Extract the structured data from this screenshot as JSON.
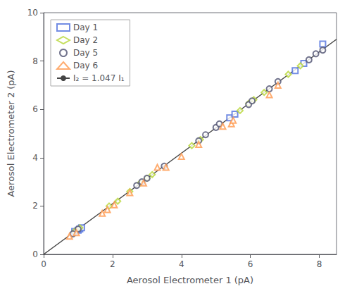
{
  "chart_data": {
    "type": "scatter",
    "xlabel": "Aerosol Electrometer 1 (pA)",
    "ylabel": "Aerosol Electrometer 2 (pA)",
    "series": [
      {
        "name": "Day 1",
        "marker": "square",
        "x": [
          0.9,
          1.0,
          1.05,
          1.1,
          5.4,
          5.55,
          7.3,
          7.55,
          8.1
        ],
        "values": [
          0.95,
          1.0,
          1.05,
          1.1,
          5.65,
          5.8,
          7.6,
          7.9,
          8.7
        ]
      },
      {
        "name": "Day 2",
        "marker": "diamond",
        "x": [
          0.9,
          1.05,
          1.9,
          2.15,
          2.5,
          2.8,
          3.0,
          3.15,
          4.3,
          4.55,
          5.7,
          5.95,
          6.1,
          6.4,
          7.1,
          7.45
        ],
        "values": [
          0.95,
          1.1,
          2.0,
          2.2,
          2.6,
          2.95,
          3.15,
          3.3,
          4.5,
          4.75,
          5.95,
          6.25,
          6.4,
          6.7,
          7.45,
          7.8
        ]
      },
      {
        "name": "Day 5",
        "marker": "circle",
        "x": [
          0.85,
          1.0,
          2.7,
          2.85,
          3.0,
          3.5,
          4.5,
          4.7,
          5.0,
          5.1,
          5.95,
          6.05,
          6.55,
          6.8,
          7.7,
          7.9,
          8.1
        ],
        "values": [
          0.85,
          1.05,
          2.85,
          3.0,
          3.15,
          3.65,
          4.7,
          4.95,
          5.25,
          5.4,
          6.2,
          6.35,
          6.85,
          7.15,
          8.05,
          8.3,
          8.45
        ]
      },
      {
        "name": "Day 6",
        "marker": "triangle",
        "x": [
          0.75,
          0.95,
          1.7,
          1.85,
          2.05,
          2.5,
          2.9,
          3.3,
          3.55,
          4.0,
          4.5,
          5.2,
          5.45,
          5.5,
          6.55,
          6.8
        ],
        "values": [
          0.75,
          0.9,
          1.7,
          1.85,
          2.05,
          2.55,
          2.95,
          3.6,
          3.6,
          4.05,
          4.55,
          5.3,
          5.4,
          5.55,
          6.6,
          7.0
        ]
      },
      {
        "name": "I₂ = 1.047 I₁",
        "type": "line",
        "color": "#444444",
        "line_style": "solid",
        "x": [
          0,
          8.5
        ],
        "values": [
          0,
          8.8995
        ]
      }
    ],
    "xlim": [
      0,
      8.5
    ],
    "ylim": [
      0,
      10
    ],
    "xticks": [
      0,
      2,
      4,
      6,
      8
    ],
    "yticks": [
      0,
      2,
      4,
      6,
      8,
      10
    ],
    "grid": false,
    "legend": "upper left"
  }
}
